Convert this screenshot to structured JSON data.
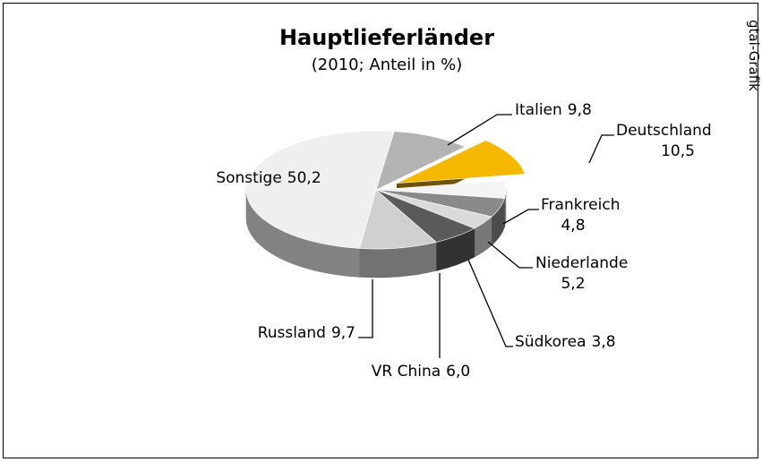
{
  "chart_data": {
    "type": "pie3d",
    "title": "Hauptlieferländer",
    "subtitle": "(2010; Anteil in %)",
    "source": "gtai-Grafik",
    "categories": [
      "Italien",
      "Deutschland",
      "Frankreich",
      "Niederlande",
      "Südkorea",
      "VR China",
      "Russland",
      "Sonstige"
    ],
    "values": [
      9.8,
      10.5,
      4.8,
      5.2,
      3.8,
      6.0,
      9.7,
      50.2
    ],
    "value_labels": [
      "9,8",
      "10,5",
      "4,8",
      "5,2",
      "3,8",
      "6,0",
      "9,7",
      "50,2"
    ],
    "colors": [
      "#b3b3b3",
      "#f5b800",
      "#f4f4f4",
      "#8a8a8a",
      "#dadada",
      "#5a5a5a",
      "#d0d0d0",
      "#efefef"
    ],
    "explode": 1
  }
}
